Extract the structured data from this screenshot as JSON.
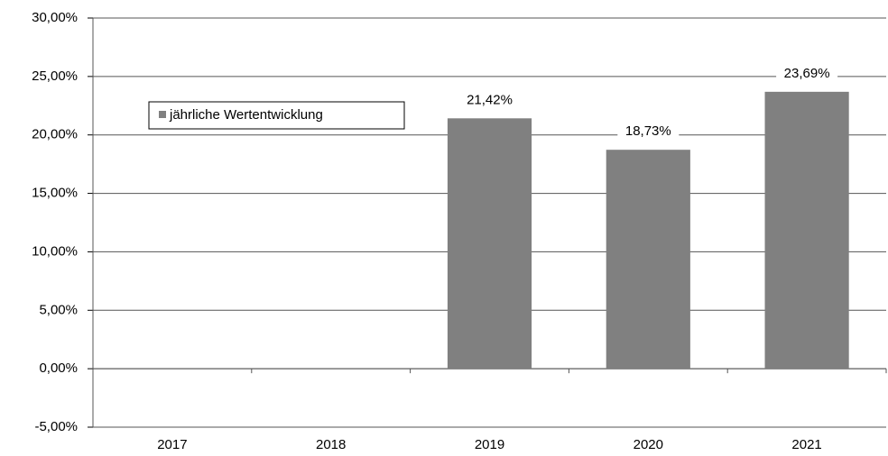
{
  "chart_data": {
    "type": "bar",
    "categories": [
      "2017",
      "2018",
      "2019",
      "2020",
      "2021"
    ],
    "series": [
      {
        "name": "jährliche Wertentwicklung",
        "color": "#808080",
        "values": [
          null,
          null,
          21.42,
          18.73,
          23.69
        ],
        "value_labels": [
          null,
          null,
          "21,42%",
          "18,73%",
          "23,69%"
        ]
      }
    ],
    "ylim": [
      -5,
      30
    ],
    "yticks": [
      {
        "value": -5,
        "label": "-5,00%"
      },
      {
        "value": 0,
        "label": "0,00%"
      },
      {
        "value": 5,
        "label": "5,00%"
      },
      {
        "value": 10,
        "label": "10,00%"
      },
      {
        "value": 15,
        "label": "15,00%"
      },
      {
        "value": 20,
        "label": "20,00%"
      },
      {
        "value": 25,
        "label": "25,00%"
      },
      {
        "value": 30,
        "label": "30,00%"
      }
    ],
    "grid": true,
    "legend": "upper left"
  }
}
